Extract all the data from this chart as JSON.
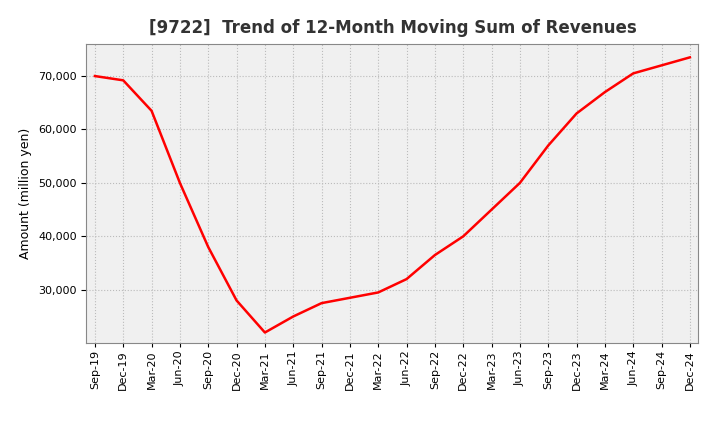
{
  "title": "[9722]  Trend of 12-Month Moving Sum of Revenues",
  "ylabel": "Amount (million yen)",
  "line_color": "#ff0000",
  "background_color": "#ffffff",
  "plot_bg_color": "#f0f0f0",
  "grid_color": "#bbbbbb",
  "x_labels": [
    "Sep-19",
    "Dec-19",
    "Mar-20",
    "Jun-20",
    "Sep-20",
    "Dec-20",
    "Mar-21",
    "Jun-21",
    "Sep-21",
    "Dec-21",
    "Mar-22",
    "Jun-22",
    "Sep-22",
    "Dec-22",
    "Mar-23",
    "Jun-23",
    "Sep-23",
    "Dec-23",
    "Mar-24",
    "Jun-24",
    "Sep-24",
    "Dec-24"
  ],
  "x_values": [
    0,
    1,
    2,
    3,
    4,
    5,
    6,
    7,
    8,
    9,
    10,
    11,
    12,
    13,
    14,
    15,
    16,
    17,
    18,
    19,
    20,
    21
  ],
  "y_values": [
    70000,
    69200,
    63500,
    50000,
    38000,
    28000,
    22000,
    25000,
    27500,
    28500,
    29500,
    32000,
    36500,
    40000,
    45000,
    50000,
    57000,
    63000,
    67000,
    70500,
    72000,
    73500
  ],
  "ylim_min": 20000,
  "ylim_max": 76000,
  "yticks": [
    30000,
    40000,
    50000,
    60000,
    70000
  ],
  "line_width": 1.8,
  "title_fontsize": 12,
  "axis_label_fontsize": 9,
  "tick_fontsize": 8
}
